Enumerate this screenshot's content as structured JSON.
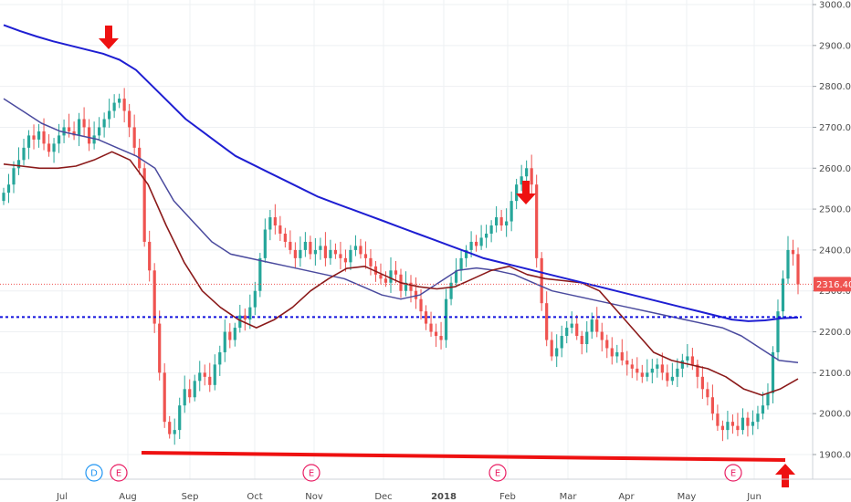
{
  "chart_data": {
    "type": "candlestick",
    "title": "",
    "xlabel": "",
    "ylabel": "",
    "ylim": [
      1850,
      3000
    ],
    "y_ticks": [
      "3000.00",
      "2900.00",
      "2800.00",
      "2700.00",
      "2600.00",
      "2500.00",
      "2400.00",
      "2300.00",
      "2200.00",
      "2100.00",
      "2000.00",
      "1900.00"
    ],
    "x_tick_labels": [
      {
        "label": "Jul",
        "bold": false
      },
      {
        "label": "Aug",
        "bold": false
      },
      {
        "label": "Sep",
        "bold": false
      },
      {
        "label": "Oct",
        "bold": false
      },
      {
        "label": "Nov",
        "bold": false
      },
      {
        "label": "Dec",
        "bold": false
      },
      {
        "label": "2018",
        "bold": true
      },
      {
        "label": "Feb",
        "bold": false
      },
      {
        "label": "Mar",
        "bold": false
      },
      {
        "label": "Apr",
        "bold": false
      },
      {
        "label": "May",
        "bold": false
      },
      {
        "label": "Jun",
        "bold": false
      }
    ],
    "last_price": "2316.40",
    "grid": true,
    "colors": {
      "up": "#26a69a",
      "down": "#ef5350",
      "ma_long": "#1e1ed2",
      "ma_mid": "#4a4a9e",
      "ma_short": "#8b1a1a",
      "annotation": "#ee1111",
      "support_dotted": "#1111dd",
      "price_tag": "#ef5350"
    },
    "close_series": [
      2540,
      2560,
      2600,
      2620,
      2650,
      2680,
      2670,
      2690,
      2660,
      2640,
      2660,
      2680,
      2700,
      2690,
      2680,
      2720,
      2700,
      2660,
      2680,
      2700,
      2720,
      2740,
      2760,
      2770,
      2740,
      2700,
      2650,
      2600,
      2420,
      2350,
      2220,
      2100,
      1980,
      1950,
      1960,
      2020,
      2060,
      2040,
      2080,
      2100,
      2090,
      2070,
      2120,
      2150,
      2200,
      2180,
      2210,
      2240,
      2230,
      2260,
      2300,
      2380,
      2450,
      2480,
      2460,
      2440,
      2420,
      2400,
      2380,
      2400,
      2420,
      2390,
      2400,
      2410,
      2380,
      2400,
      2390,
      2380,
      2370,
      2400,
      2410,
      2390,
      2380,
      2360,
      2340,
      2330,
      2320,
      2350,
      2340,
      2300,
      2320,
      2300,
      2280,
      2250,
      2220,
      2200,
      2190,
      2180,
      2280,
      2320,
      2350,
      2380,
      2400,
      2420,
      2410,
      2430,
      2440,
      2460,
      2480,
      2460,
      2470,
      2520,
      2560,
      2580,
      2600,
      2560,
      2380,
      2270,
      2180,
      2140,
      2160,
      2190,
      2210,
      2220,
      2190,
      2170,
      2200,
      2230,
      2200,
      2180,
      2160,
      2140,
      2150,
      2130,
      2120,
      2110,
      2100,
      2090,
      2100,
      2110,
      2120,
      2100,
      2080,
      2090,
      2110,
      2130,
      2140,
      2120,
      2090,
      2060,
      2040,
      2000,
      1970,
      1960,
      1980,
      1970,
      1960,
      1990,
      1970,
      1980,
      2000,
      2020,
      2050,
      2150,
      2250,
      2330,
      2400,
      2390,
      2316
    ],
    "ma_long_series": [
      2950,
      2935,
      2922,
      2910,
      2900,
      2890,
      2880,
      2865,
      2840,
      2800,
      2760,
      2720,
      2690,
      2660,
      2630,
      2610,
      2590,
      2570,
      2550,
      2530,
      2515,
      2500,
      2485,
      2470,
      2455,
      2440,
      2425,
      2410,
      2395,
      2380,
      2370,
      2360,
      2350,
      2340,
      2330,
      2320,
      2310,
      2300,
      2290,
      2280,
      2270,
      2260,
      2250,
      2240,
      2230,
      2226,
      2228,
      2233,
      2235
    ],
    "ma_mid_series": [
      2770,
      2740,
      2710,
      2690,
      2680,
      2670,
      2650,
      2630,
      2600,
      2520,
      2470,
      2420,
      2390,
      2380,
      2370,
      2360,
      2350,
      2340,
      2330,
      2310,
      2290,
      2280,
      2290,
      2320,
      2350,
      2356,
      2350,
      2340,
      2320,
      2300,
      2290,
      2280,
      2270,
      2260,
      2250,
      2240,
      2230,
      2220,
      2210,
      2190,
      2160,
      2130,
      2125
    ],
    "ma_short_series": [
      2610,
      2605,
      2600,
      2600,
      2605,
      2620,
      2640,
      2620,
      2560,
      2460,
      2370,
      2300,
      2260,
      2230,
      2210,
      2230,
      2260,
      2300,
      2330,
      2355,
      2360,
      2340,
      2320,
      2310,
      2305,
      2310,
      2330,
      2350,
      2360,
      2340,
      2330,
      2325,
      2320,
      2300,
      2250,
      2200,
      2150,
      2130,
      2120,
      2110,
      2090,
      2060,
      2045,
      2060,
      2085
    ],
    "support_red_y": 1900,
    "support_dotted_y": 2236,
    "events": [
      {
        "letter": "D",
        "style": "blue"
      },
      {
        "letter": "E",
        "style": "red"
      },
      {
        "letter": "E",
        "style": "red"
      },
      {
        "letter": "E",
        "style": "red"
      },
      {
        "letter": "E",
        "style": "red"
      }
    ]
  }
}
